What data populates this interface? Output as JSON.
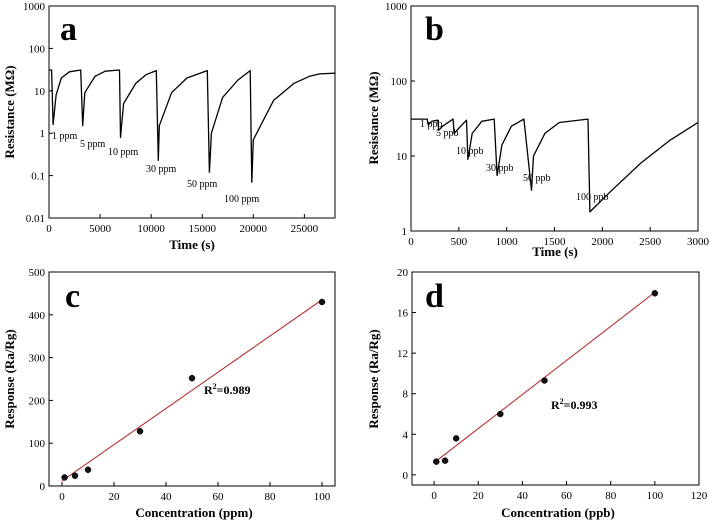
{
  "chart_data": [
    {
      "type": "line",
      "panel_label": "a",
      "xlabel": "Time (s)",
      "ylabel": "Resistance (MΩ)",
      "xlim": [
        0,
        28000
      ],
      "ylim": [
        0.01,
        1000
      ],
      "yscale": "log",
      "xticks": [
        "0",
        "5000",
        "10000",
        "15000",
        "20000",
        "25000"
      ],
      "yticks": [
        "0.01",
        "0.1",
        "1",
        "10",
        "100",
        "1000"
      ],
      "series": [
        {
          "x": [
            0,
            250,
            400,
            700,
            1200,
            2000,
            3100,
            3300,
            3500,
            4500,
            5500,
            6900,
            7000,
            7300,
            8500,
            9500,
            10500,
            10700,
            10800,
            12000,
            13500,
            15500,
            15700,
            15900,
            17000,
            18500,
            19700,
            19850,
            20000,
            22000,
            24000,
            25500,
            26500,
            28000
          ],
          "y": [
            31,
            31,
            1.6,
            8,
            20,
            28,
            31,
            1.5,
            9,
            22,
            29,
            31,
            0.8,
            5,
            15,
            24,
            30,
            0.23,
            1.5,
            9,
            20,
            30,
            0.12,
            1,
            7,
            18,
            30,
            0.07,
            0.7,
            6,
            15,
            22,
            25,
            26
          ]
        }
      ],
      "annotations": [
        "1 ppm",
        "5 ppm",
        "10 ppm",
        "30 ppm",
        "50 ppm",
        "100 ppm"
      ]
    },
    {
      "type": "line",
      "panel_label": "b",
      "xlabel": "Time (s)",
      "ylabel": "Resistance (MΩ)",
      "xlim": [
        0,
        3000
      ],
      "ylim": [
        1,
        1000
      ],
      "yscale": "log",
      "xticks": [
        "0",
        "500",
        "1000",
        "1500",
        "2000",
        "2500",
        "3000"
      ],
      "yticks": [
        "1",
        "10",
        "100",
        "1000"
      ],
      "series": [
        {
          "x": [
            0,
            170,
            180,
            215,
            280,
            290,
            330,
            440,
            450,
            520,
            580,
            595,
            640,
            740,
            870,
            900,
            950,
            1050,
            1180,
            1260,
            1280,
            1400,
            1550,
            1850,
            1870,
            2100,
            2400,
            2700,
            3000
          ],
          "y": [
            31,
            31,
            26,
            29,
            30,
            22,
            25,
            31,
            20,
            25,
            30,
            9,
            20,
            29,
            31,
            5.5,
            14,
            25,
            31,
            3.5,
            10,
            20,
            28,
            31,
            1.8,
            3.5,
            8,
            16,
            28
          ]
        }
      ],
      "annotations": [
        "1 ppb",
        "5 ppb",
        "10 ppb",
        "30 ppb",
        "50 ppb",
        "100 ppb"
      ]
    },
    {
      "type": "scatter",
      "panel_label": "c",
      "xlabel": "Concentration (ppm)",
      "ylabel": "Response (Ra/Rg)",
      "xlim": [
        -5,
        105
      ],
      "ylim": [
        0,
        500
      ],
      "xticks": [
        "0",
        "20",
        "40",
        "60",
        "80",
        "100"
      ],
      "yticks": [
        "0",
        "100",
        "200",
        "300",
        "400",
        "500"
      ],
      "points": [
        {
          "x": 1,
          "y": 20
        },
        {
          "x": 5,
          "y": 24
        },
        {
          "x": 10,
          "y": 38
        },
        {
          "x": 30,
          "y": 128
        },
        {
          "x": 50,
          "y": 252
        },
        {
          "x": 100,
          "y": 430
        }
      ],
      "fit": {
        "x": [
          0,
          100
        ],
        "y": [
          12,
          435
        ]
      },
      "r2_prefix": "R",
      "r2_sup": "2",
      "r2_value": "=0.989"
    },
    {
      "type": "scatter",
      "panel_label": "d",
      "xlabel": "Concentration (ppb)",
      "ylabel": "Response (Ra/Rg)",
      "xlim": [
        -10,
        120
      ],
      "ylim": [
        -1,
        20
      ],
      "xticks": [
        "0",
        "20",
        "40",
        "60",
        "80",
        "100",
        "120"
      ],
      "yticks": [
        "0",
        "4",
        "8",
        "12",
        "16",
        "20"
      ],
      "points": [
        {
          "x": 1,
          "y": 1.3
        },
        {
          "x": 5,
          "y": 1.4
        },
        {
          "x": 10,
          "y": 3.6
        },
        {
          "x": 30,
          "y": 6.0
        },
        {
          "x": 50,
          "y": 9.3
        },
        {
          "x": 100,
          "y": 17.9
        }
      ],
      "fit": {
        "x": [
          0,
          100
        ],
        "y": [
          1.2,
          18.0
        ]
      },
      "r2_prefix": "R",
      "r2_sup": "2",
      "r2_value": "=0.993"
    }
  ]
}
